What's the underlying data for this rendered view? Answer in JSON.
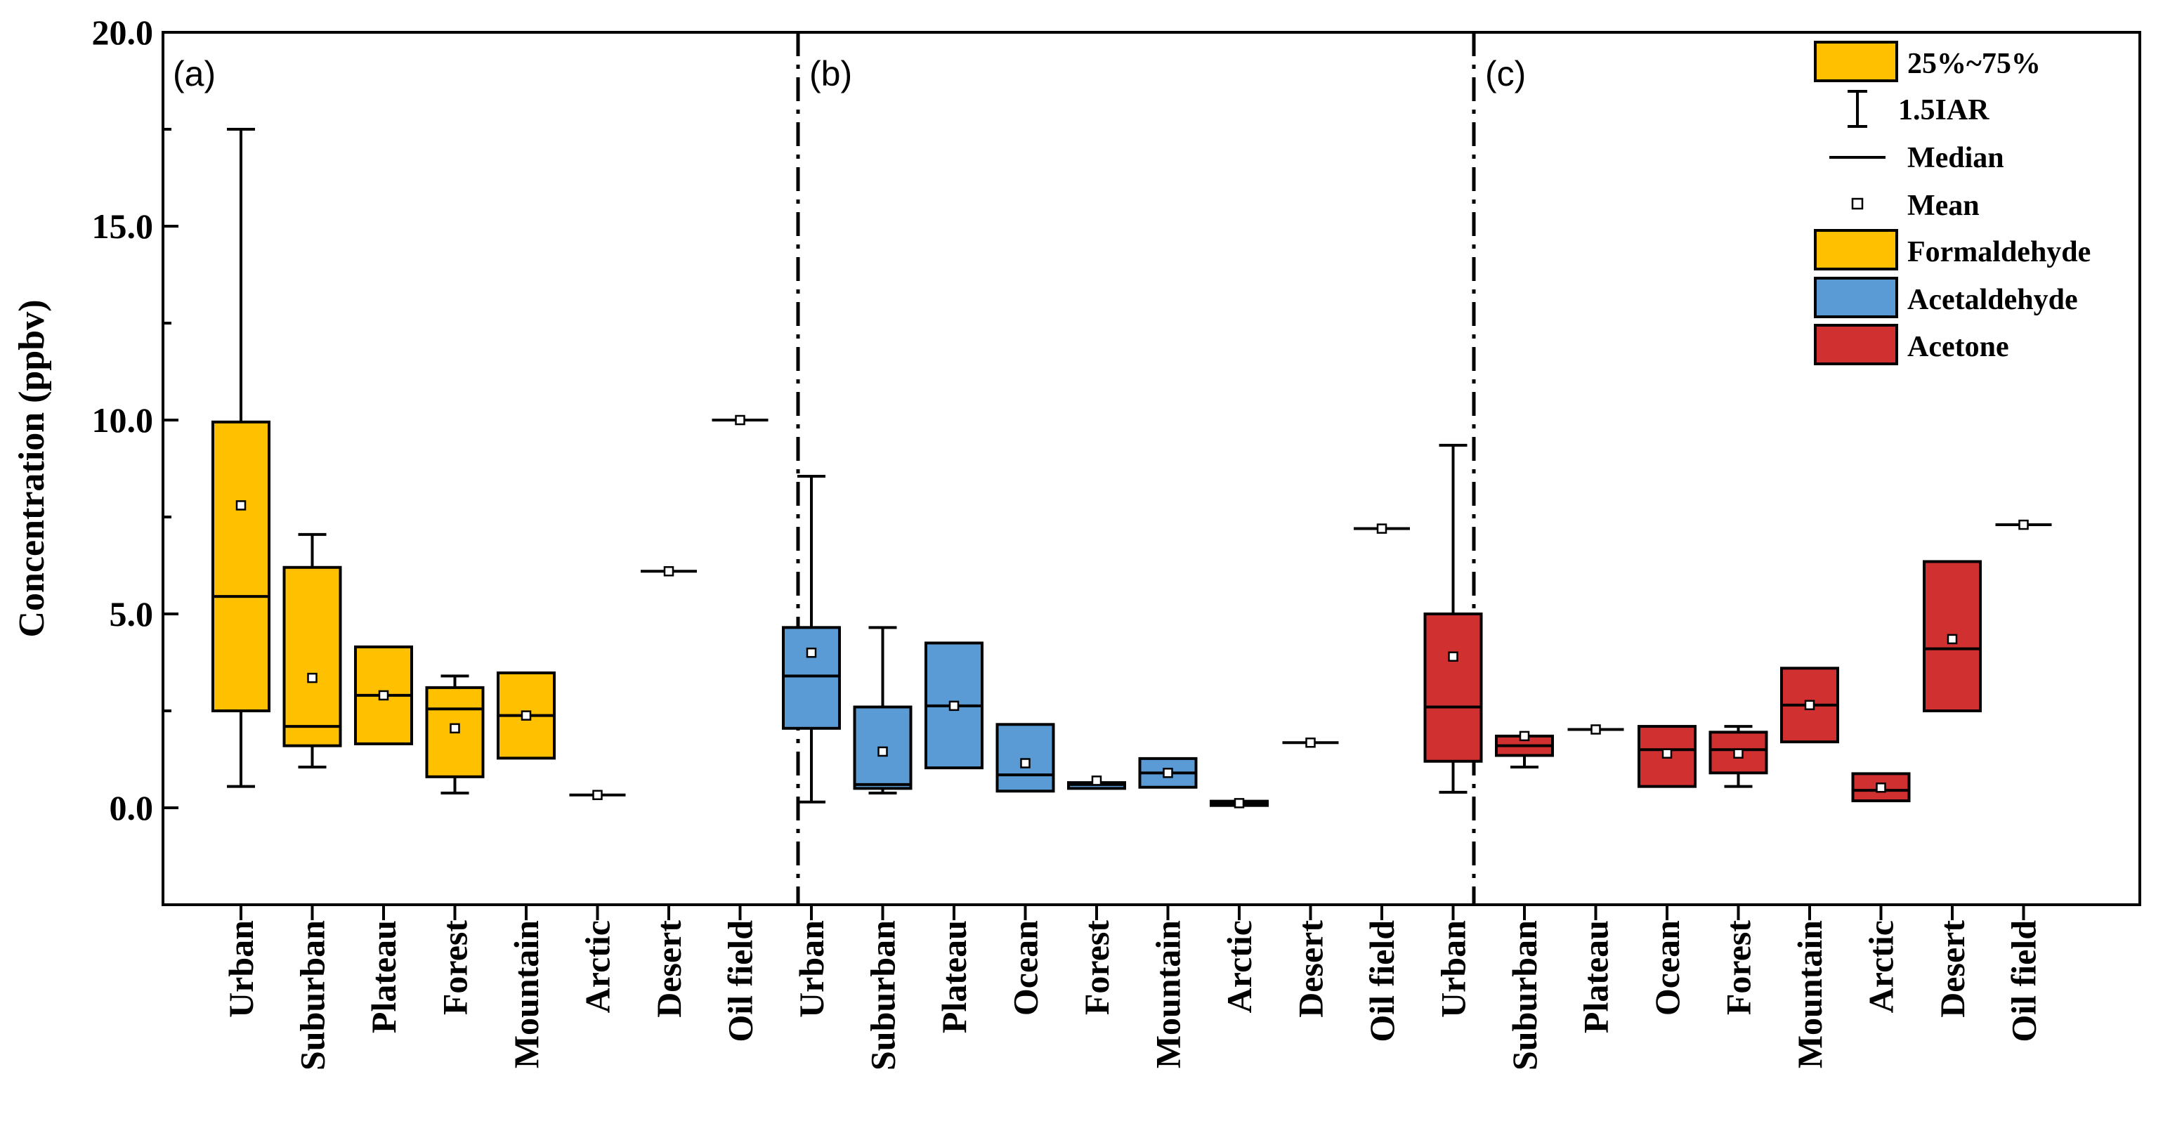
{
  "chart_data": {
    "type": "box",
    "ylabel": "Concentration (ppbv)",
    "ylim": [
      -2.5,
      20
    ],
    "yticks": [
      "0.0",
      "5.0",
      "10.0",
      "15.0",
      "20.0"
    ],
    "ytick_values": [
      0,
      5,
      10,
      15,
      20
    ],
    "colors": {
      "Formaldehyde": "#FFC000",
      "Acetaldehyde": "#5B9BD5",
      "Acetone": "#D03030"
    },
    "legend": {
      "iqr": "25%~75%",
      "whisker": "1.5IAR",
      "median": "Median",
      "mean": "Mean",
      "series": [
        "Formaldehyde",
        "Acetaldehyde",
        "Acetone"
      ]
    },
    "panels": [
      {
        "label": "(a)",
        "compound": "Formaldehyde",
        "boxes": [
          {
            "category": "Urban",
            "min": 0.55,
            "q1": 2.5,
            "median": 5.45,
            "q3": 9.95,
            "max": 17.5,
            "mean": 7.8
          },
          {
            "category": "Suburban",
            "min": 1.05,
            "q1": 1.6,
            "median": 2.1,
            "q3": 6.2,
            "max": 7.05,
            "mean": 3.35
          },
          {
            "category": "Plateau",
            "min": 1.65,
            "q1": 1.65,
            "median": 2.9,
            "q3": 4.15,
            "max": 4.15,
            "mean": 2.9
          },
          {
            "category": "Forest",
            "min": 0.38,
            "q1": 0.8,
            "median": 2.55,
            "q3": 3.1,
            "max": 3.4,
            "mean": 2.05
          },
          {
            "category": "Mountain",
            "min": 1.28,
            "q1": 1.28,
            "median": 2.38,
            "q3": 3.48,
            "max": 3.48,
            "mean": 2.38
          },
          {
            "category": "Arctic",
            "min": 0.33,
            "q1": 0.33,
            "median": 0.33,
            "q3": 0.33,
            "max": 0.33,
            "mean": 0.33
          },
          {
            "category": "Desert",
            "min": 6.1,
            "q1": 6.1,
            "median": 6.1,
            "q3": 6.1,
            "max": 6.1,
            "mean": 6.1
          },
          {
            "category": "Oil field",
            "min": 10.0,
            "q1": 10.0,
            "median": 10.0,
            "q3": 10.0,
            "max": 10.0,
            "mean": 10.0
          }
        ]
      },
      {
        "label": "(b)",
        "compound": "Acetaldehyde",
        "boxes": [
          {
            "category": "Urban",
            "min": 0.15,
            "q1": 2.05,
            "median": 3.4,
            "q3": 4.65,
            "max": 8.55,
            "mean": 4.0
          },
          {
            "category": "Suburban",
            "min": 0.38,
            "q1": 0.5,
            "median": 0.6,
            "q3": 2.6,
            "max": 4.65,
            "mean": 1.45
          },
          {
            "category": "Plateau",
            "min": 1.03,
            "q1": 1.03,
            "median": 2.63,
            "q3": 4.25,
            "max": 4.25,
            "mean": 2.63
          },
          {
            "category": "Ocean",
            "min": 0.43,
            "q1": 0.43,
            "median": 0.85,
            "q3": 2.15,
            "max": 2.15,
            "mean": 1.15
          },
          {
            "category": "Forest",
            "min": 0.5,
            "q1": 0.5,
            "median": 0.6,
            "q3": 0.65,
            "max": 0.65,
            "mean": 0.7
          },
          {
            "category": "Mountain",
            "min": 0.53,
            "q1": 0.53,
            "median": 0.9,
            "q3": 1.27,
            "max": 1.27,
            "mean": 0.9
          },
          {
            "category": "Arctic",
            "min": 0.06,
            "q1": 0.06,
            "median": 0.12,
            "q3": 0.17,
            "max": 0.17,
            "mean": 0.12
          },
          {
            "category": "Desert",
            "min": 1.68,
            "q1": 1.68,
            "median": 1.68,
            "q3": 1.68,
            "max": 1.68,
            "mean": 1.68
          },
          {
            "category": "Oil field",
            "min": 7.2,
            "q1": 7.2,
            "median": 7.2,
            "q3": 7.2,
            "max": 7.2,
            "mean": 7.2
          }
        ]
      },
      {
        "label": "(c)",
        "compound": "Acetone",
        "boxes": [
          {
            "category": "Urban",
            "min": 0.4,
            "q1": 1.2,
            "median": 2.6,
            "q3": 5.0,
            "max": 9.35,
            "mean": 3.9
          },
          {
            "category": "Suburban",
            "min": 1.05,
            "q1": 1.35,
            "median": 1.6,
            "q3": 1.85,
            "max": 1.85,
            "mean": 1.85
          },
          {
            "category": "Plateau",
            "min": 2.02,
            "q1": 2.02,
            "median": 2.02,
            "q3": 2.02,
            "max": 2.02,
            "mean": 2.02
          },
          {
            "category": "Ocean",
            "min": 0.55,
            "q1": 0.55,
            "median": 1.5,
            "q3": 2.1,
            "max": 2.1,
            "mean": 1.4
          },
          {
            "category": "Forest",
            "min": 0.55,
            "q1": 0.9,
            "median": 1.5,
            "q3": 1.95,
            "max": 2.1,
            "mean": 1.4
          },
          {
            "category": "Mountain",
            "min": 1.7,
            "q1": 1.7,
            "median": 2.65,
            "q3": 3.6,
            "max": 3.6,
            "mean": 2.65
          },
          {
            "category": "Arctic",
            "min": 0.18,
            "q1": 0.18,
            "median": 0.45,
            "q3": 0.88,
            "max": 0.88,
            "mean": 0.52
          },
          {
            "category": "Desert",
            "min": 2.5,
            "q1": 2.5,
            "median": 4.1,
            "q3": 6.35,
            "max": 6.35,
            "mean": 4.35
          },
          {
            "category": "Oil field",
            "min": 7.3,
            "q1": 7.3,
            "median": 7.3,
            "q3": 7.3,
            "max": 7.3,
            "mean": 7.3
          }
        ]
      }
    ]
  }
}
